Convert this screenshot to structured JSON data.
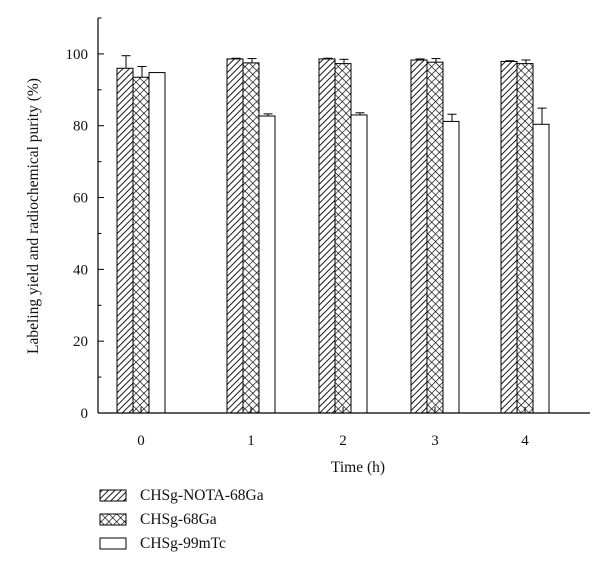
{
  "chart_data": {
    "type": "bar",
    "xlabel": "Time (h)",
    "ylabel": "Labeling yield and radiochemical purity (%)",
    "categories": [
      "0",
      "1",
      "2",
      "3",
      "4"
    ],
    "ylim": [
      0,
      110
    ],
    "yticks": [
      0,
      20,
      40,
      60,
      80,
      100
    ],
    "series": [
      {
        "name": "CHSg-NOTA-68Ga",
        "values": [
          96.0,
          98.6,
          98.6,
          98.3,
          97.9
        ],
        "errors": [
          3.5,
          0.2,
          0.2,
          0.3,
          0.2
        ],
        "pattern": "diagonal-hatch"
      },
      {
        "name": "CHSg-68Ga",
        "values": [
          93.5,
          97.5,
          97.3,
          97.7,
          97.3
        ],
        "errors": [
          3.0,
          1.2,
          1.2,
          1.0,
          1.0
        ],
        "pattern": "crosshatch"
      },
      {
        "name": "CHSg-99mTc",
        "values": [
          94.8,
          82.7,
          83.0,
          81.2,
          80.4
        ],
        "errors": [
          0.0,
          0.6,
          0.6,
          2.0,
          4.5
        ],
        "pattern": "none"
      }
    ],
    "grid": false,
    "legend_position": "bottom-left"
  }
}
